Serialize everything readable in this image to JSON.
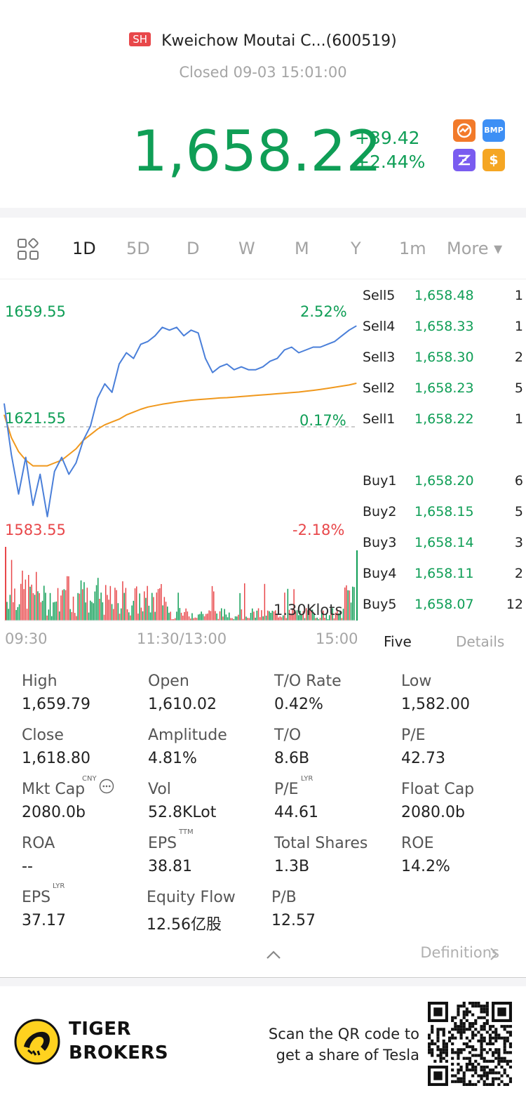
{
  "header": {
    "exchange": "SH",
    "stock_name": "Kweichow Moutai C...(600519)",
    "status": "Closed 09-03 15:01:00",
    "last_price": "1,658.22",
    "change_abs": "+39.42",
    "change_pct": "+2.44%",
    "badges": [
      {
        "name": "trade-icon",
        "text": ""
      },
      {
        "name": "bmp-icon",
        "text": "BMP"
      },
      {
        "name": "zz-icon",
        "text": ""
      },
      {
        "name": "dollar-icon",
        "text": "$"
      }
    ]
  },
  "period_tabs": [
    "1D",
    "5D",
    "D",
    "W",
    "M",
    "Y",
    "1m",
    "More ▾"
  ],
  "active_tab": "1D",
  "chart_data": {
    "type": "line",
    "price_axis": {
      "top": "1659.55",
      "mid": "1621.55",
      "bottom": "1583.55"
    },
    "pct_axis": {
      "top": "2.52%",
      "mid": "0.17%",
      "bottom": "-2.18%"
    },
    "ylim": [
      1583.55,
      1659.55
    ],
    "prev_close": 1621.55,
    "x_ticks": [
      "09:30",
      "11:30/13:00",
      "15:00"
    ],
    "volume_label": "1.30Klots",
    "series": [
      {
        "values": [
          1630,
          1612,
          1598,
          1611,
          1594,
          1605,
          1590,
          1606,
          1611,
          1605,
          1609,
          1617,
          1622,
          1632,
          1637,
          1634,
          1644,
          1648,
          1646,
          1651,
          1652,
          1654,
          1657,
          1656,
          1657,
          1654,
          1656,
          1655,
          1646,
          1641,
          1643,
          1644,
          1642,
          1643,
          1642,
          1642,
          1643,
          1645,
          1646,
          1649,
          1650,
          1648,
          1649,
          1650,
          1650,
          1651,
          1652,
          1654,
          1656,
          1657.5
        ],
        "color": "#4a7fd9"
      },
      {
        "values": [
          1626,
          1618,
          1613,
          1610,
          1608,
          1608,
          1608,
          1609,
          1610,
          1612,
          1614,
          1617,
          1619,
          1621,
          1622.5,
          1623.5,
          1624.5,
          1626,
          1627,
          1628,
          1628.8,
          1629.3,
          1629.8,
          1630.2,
          1630.6,
          1630.9,
          1631.2,
          1631.4,
          1631.6,
          1631.8,
          1632,
          1632.1,
          1632.3,
          1632.5,
          1632.7,
          1632.9,
          1633.1,
          1633.3,
          1633.5,
          1633.7,
          1633.9,
          1634.1,
          1634.4,
          1634.7,
          1635,
          1635.4,
          1635.8,
          1636.2,
          1636.6,
          1637.2
        ],
        "color": "#f0981d"
      }
    ]
  },
  "order_book": {
    "sell": [
      {
        "label": "Sell5",
        "price": "1,658.48",
        "qty": "1"
      },
      {
        "label": "Sell4",
        "price": "1,658.33",
        "qty": "1"
      },
      {
        "label": "Sell3",
        "price": "1,658.30",
        "qty": "2"
      },
      {
        "label": "Sell2",
        "price": "1,658.23",
        "qty": "5"
      },
      {
        "label": "Sell1",
        "price": "1,658.22",
        "qty": "1"
      }
    ],
    "buy": [
      {
        "label": "Buy1",
        "price": "1,658.20",
        "qty": "6"
      },
      {
        "label": "Buy2",
        "price": "1,658.15",
        "qty": "5"
      },
      {
        "label": "Buy3",
        "price": "1,658.14",
        "qty": "3"
      },
      {
        "label": "Buy4",
        "price": "1,658.11",
        "qty": "2"
      },
      {
        "label": "Buy5",
        "price": "1,658.07",
        "qty": "12"
      }
    ],
    "tab_five": "Five",
    "tab_details": "Details"
  },
  "stats": [
    {
      "label": "High",
      "value": "1,659.79"
    },
    {
      "label": "Open",
      "value": "1,610.02"
    },
    {
      "label": "T/O Rate",
      "value": "0.42%"
    },
    {
      "label": "Low",
      "value": "1,582.00"
    },
    {
      "label": "Close",
      "value": "1,618.80"
    },
    {
      "label": "Amplitude",
      "value": "4.81%"
    },
    {
      "label": "T/O",
      "value": "8.6B"
    },
    {
      "label": "P/E",
      "value": "42.73"
    },
    {
      "label": "Mkt Cap",
      "value": "2080.0b",
      "sup": "CNY"
    },
    {
      "label": "Vol",
      "value": "52.8KLot"
    },
    {
      "label": "P/E",
      "value": "44.61",
      "sup": "LYR"
    },
    {
      "label": "Float Cap",
      "value": "2080.0b"
    },
    {
      "label": "ROA",
      "value": "--"
    },
    {
      "label": "EPS",
      "value": "38.81",
      "sup": "TTM"
    },
    {
      "label": "Total Shares",
      "value": "1.3B"
    },
    {
      "label": "ROE",
      "value": "14.2%"
    },
    {
      "label": "EPS",
      "value": "37.17",
      "sup": "LYR"
    },
    {
      "label": "Equity Flow",
      "value": "12.56亿股"
    },
    {
      "label": "P/B",
      "value": "12.57"
    }
  ],
  "definitions_label": "Definitions",
  "footer": {
    "brand_line1": "TIGER",
    "brand_line2": "BROKERS",
    "promo_line1": "Scan the QR code to",
    "promo_line2": "get a share of Tesla"
  },
  "colors": {
    "up": "#0f9e56",
    "down": "#e8474a",
    "price_line": "#4a7fd9",
    "avg_line": "#f0981d",
    "muted": "#a5a5a5"
  }
}
